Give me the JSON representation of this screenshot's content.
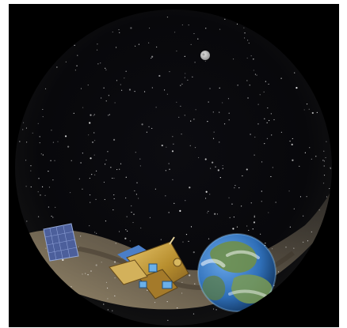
{
  "image": {
    "background_color": "#ffffff",
    "panel_color": "#000000",
    "sky_color": "#08080b",
    "milky_way_color": "#b9a98a",
    "earth_ocean_color": "#2f6fb8",
    "earth_land_color": "#6f8f4a",
    "satellite_body_color": "#c7a13f",
    "solar_panel_color": "#4c5f9b",
    "moon_color": "#b9b9b9"
  },
  "icons": {
    "satellite": "satellite-icon",
    "earth": "earth-icon",
    "moon": "moon-icon",
    "solar_panel": "solar-panel-icon"
  }
}
